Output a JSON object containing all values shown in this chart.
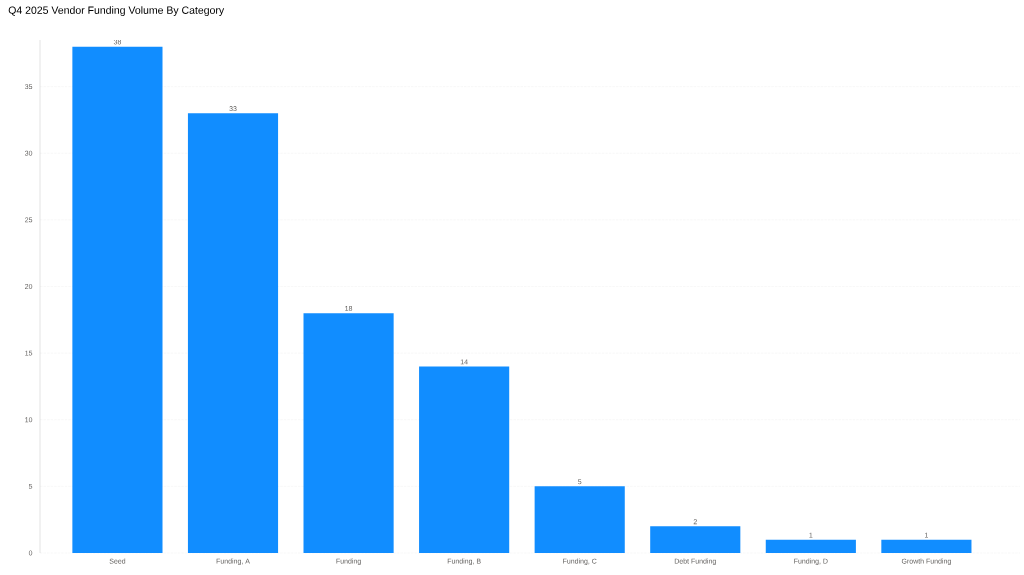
{
  "chart_data": {
    "type": "bar",
    "title": "Q4 2025 Vendor Funding Volume By Category",
    "categories": [
      "Seed",
      "Funding, A",
      "Funding",
      "Funding, B",
      "Funding, C",
      "Debt Funding",
      "Funding, D",
      "Growth Funding"
    ],
    "values": [
      38,
      33,
      18,
      14,
      5,
      2,
      1,
      1
    ],
    "color": "#118dff",
    "ylim": [
      0,
      38.5
    ],
    "yticks": [
      0,
      5,
      10,
      15,
      20,
      25,
      30,
      35
    ],
    "grid": "y",
    "data_labels": true
  }
}
